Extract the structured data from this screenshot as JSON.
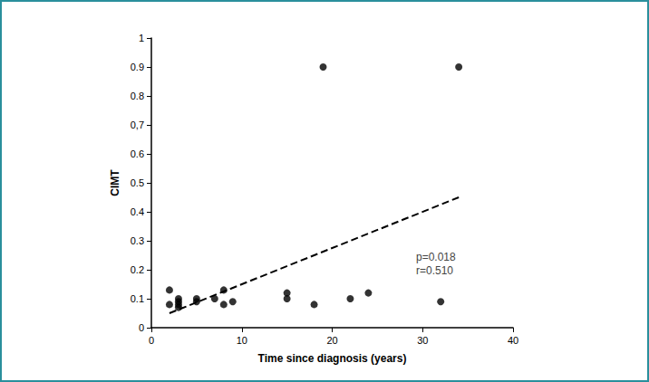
{
  "chart_data": {
    "type": "scatter",
    "x_label": "Time since diagnosis (years)",
    "y_label": "CIMT",
    "annotations": [
      "p=0.018",
      "r=0.510"
    ],
    "series": [
      {
        "type": "scatter",
        "marker": "circle",
        "color": "#000000",
        "x": [
          2,
          2,
          3,
          3,
          3,
          3,
          5,
          5,
          7,
          8,
          8,
          9,
          15,
          15,
          18,
          19,
          22,
          24,
          32,
          34
        ],
        "values": [
          0.13,
          0.08,
          0.1,
          0.09,
          0.08,
          0.07,
          0.1,
          0.09,
          0.1,
          0.13,
          0.08,
          0.09,
          0.12,
          0.1,
          0.08,
          0.9,
          0.1,
          0.12,
          0.09,
          0.9
        ]
      },
      {
        "type": "line",
        "line_style": "dashed",
        "color": "#000000",
        "x": [
          2,
          34
        ],
        "values": [
          0.05,
          0.45
        ]
      }
    ],
    "xlim": [
      0,
      40
    ],
    "xticks": [
      0,
      10,
      20,
      30,
      40
    ],
    "ylim": [
      0,
      1
    ],
    "yticks": [
      0,
      0.1,
      0.2,
      0.3,
      0.4,
      0.5,
      0.6,
      {
        "value": 0.7,
        "label": "0,7"
      },
      0.8,
      0.9,
      1
    ],
    "grid": false
  }
}
